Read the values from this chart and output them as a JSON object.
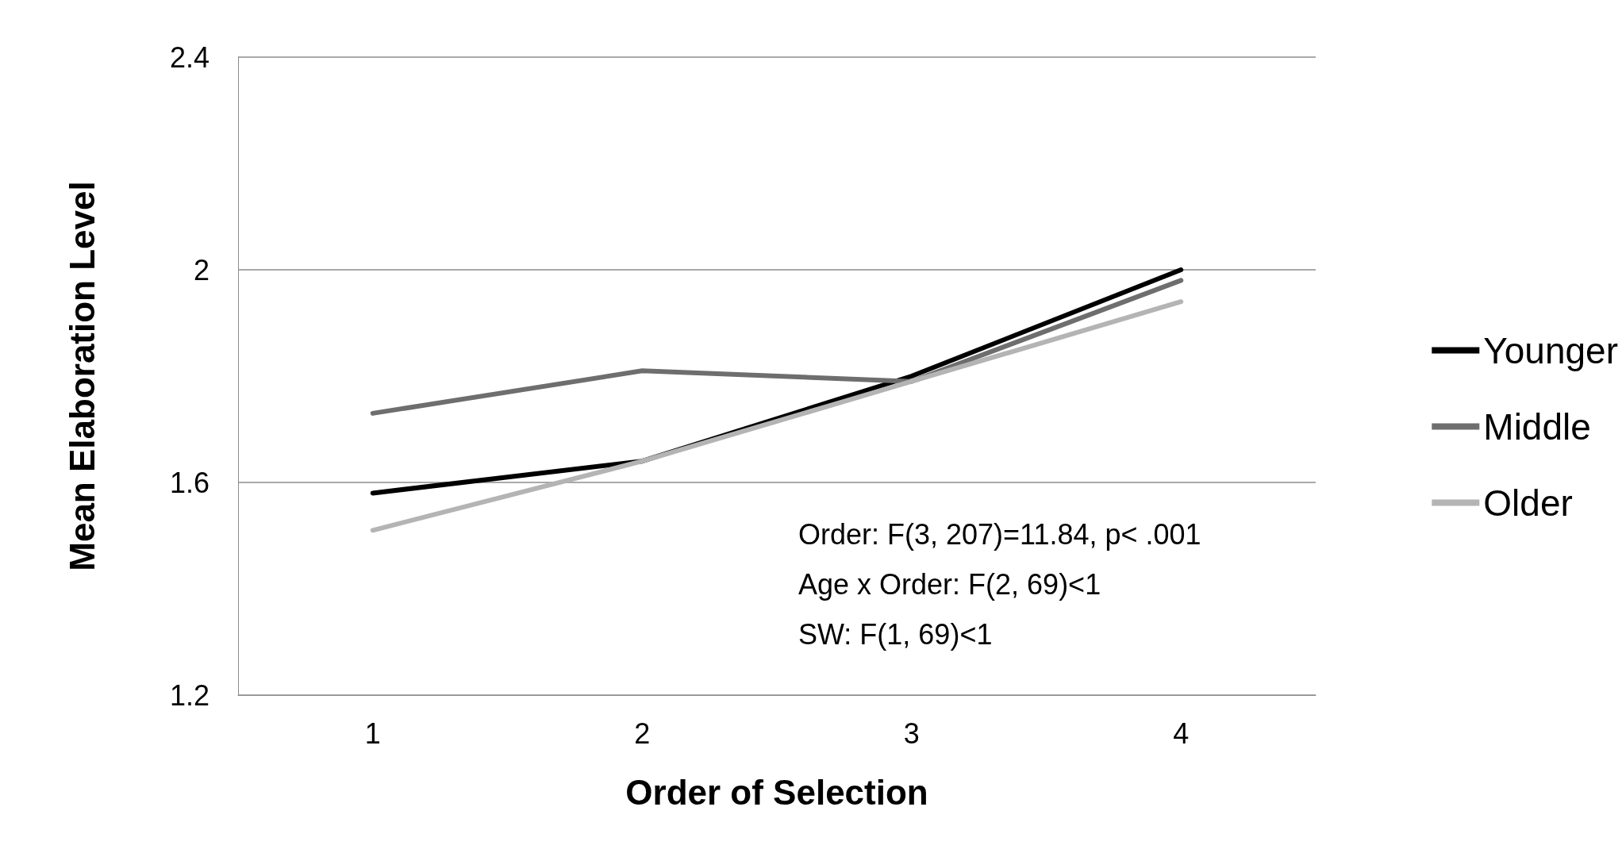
{
  "chart_data": {
    "type": "line",
    "xlabel": "Order of Selection",
    "ylabel": "Mean Elaboration Level",
    "categories": [
      "1",
      "2",
      "3",
      "4"
    ],
    "series": [
      {
        "name": "Younger",
        "color": "#000000",
        "values": [
          1.58,
          1.64,
          1.8,
          2.0
        ]
      },
      {
        "name": "Middle",
        "color": "#6e6e6e",
        "values": [
          1.73,
          1.81,
          1.79,
          1.98
        ]
      },
      {
        "name": "Older",
        "color": "#b4b4b4",
        "values": [
          1.51,
          1.64,
          1.79,
          1.94
        ]
      }
    ],
    "ylim": [
      1.2,
      2.4
    ],
    "yticks": [
      1.2,
      1.6,
      2,
      2.4
    ],
    "grid": "y",
    "legend": "right",
    "marker": "none",
    "line_style": "solid",
    "annotations": [
      "Order: F(3, 207)=11.84, p< .001",
      "Age x Order: F(2, 69)<1",
      "SW: F(1, 69)<1"
    ]
  }
}
